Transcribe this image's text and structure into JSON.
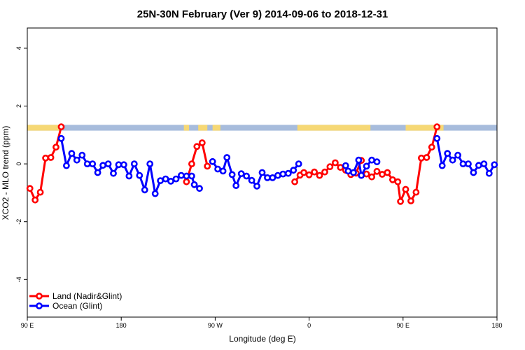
{
  "chart_data": {
    "type": "line",
    "title": "25N-30N February (Ver 9)   2014-09-06 to 2018-12-31",
    "xlabel": "Longitude (deg E)",
    "ylabel": "XCO2 - MLO trend (ppm)",
    "xlim": [
      90,
      450
    ],
    "ylim": [
      -5.3,
      4.7
    ],
    "x_ticks": [
      {
        "value": 90,
        "label": "90 E"
      },
      {
        "value": 162,
        "label": "180"
      },
      {
        "value": 234,
        "label": "90 W"
      },
      {
        "value": 306,
        "label": "0"
      },
      {
        "value": 378,
        "label": "90 E"
      },
      {
        "value": 450,
        "label": "180"
      }
    ],
    "y_ticks": [
      {
        "value": -4,
        "label": "-4"
      },
      {
        "value": -2,
        "label": "-2"
      },
      {
        "value": 0,
        "label": "0"
      },
      {
        "value": 2,
        "label": "2"
      },
      {
        "value": 4,
        "label": "4"
      }
    ],
    "grid": false,
    "legend_position": "bottom-left",
    "surface_strip": {
      "y_range": [
        1.15,
        1.35
      ],
      "ocean_color": "#A7BCDC",
      "land_color": "#F6D875",
      "land_segments": [
        [
          90,
          116
        ],
        [
          210,
          214
        ],
        [
          221,
          228
        ],
        [
          232,
          238
        ],
        [
          297,
          353
        ],
        [
          380,
          409
        ]
      ]
    },
    "series": [
      {
        "name": "Land (Nadir&Glint)",
        "color": "#FF0000",
        "segments": [
          [
            [
              92,
              -0.85
            ],
            [
              96,
              -1.25
            ],
            [
              100,
              -0.98
            ],
            [
              104,
              0.2
            ],
            [
              108,
              0.22
            ],
            [
              112,
              0.58
            ],
            [
              116,
              1.28
            ]
          ],
          [
            [
              212,
              -0.62
            ],
            [
              216,
              0.0
            ],
            [
              220,
              0.6
            ],
            [
              224,
              0.73
            ],
            [
              228,
              -0.08
            ]
          ],
          [
            [
              295,
              -0.62
            ],
            [
              299,
              -0.39
            ],
            [
              302,
              -0.3
            ],
            [
              306,
              -0.38
            ],
            [
              310,
              -0.28
            ],
            [
              314,
              -0.4
            ],
            [
              318,
              -0.28
            ],
            [
              322,
              -0.1
            ],
            [
              326,
              0.04
            ],
            [
              330,
              -0.12
            ],
            [
              334,
              -0.22
            ],
            [
              338,
              -0.37
            ],
            [
              342,
              -0.32
            ],
            [
              346,
              0.12
            ]
          ],
          [
            [
              350,
              -0.35
            ],
            [
              354,
              -0.45
            ],
            [
              358,
              -0.26
            ],
            [
              362,
              -0.36
            ],
            [
              366,
              -0.3
            ],
            [
              370,
              -0.55
            ],
            [
              374,
              -0.62
            ],
            [
              376,
              -1.3
            ],
            [
              380,
              -0.88
            ],
            [
              384,
              -1.28
            ],
            [
              388,
              -0.98
            ],
            [
              392,
              0.2
            ],
            [
              396,
              0.22
            ],
            [
              400,
              0.58
            ],
            [
              404,
              1.28
            ]
          ]
        ]
      },
      {
        "name": "Ocean (Glint)",
        "color": "#0000FF",
        "segments": [
          [
            [
              116,
              0.88
            ],
            [
              120,
              -0.06
            ],
            [
              124,
              0.36
            ],
            [
              128,
              0.13
            ],
            [
              132,
              0.3
            ],
            [
              136,
              0.0
            ],
            [
              140,
              0.0
            ],
            [
              144,
              -0.3
            ],
            [
              148,
              -0.05
            ],
            [
              152,
              0.0
            ],
            [
              156,
              -0.33
            ],
            [
              160,
              -0.03
            ],
            [
              164,
              -0.03
            ],
            [
              168,
              -0.42
            ],
            [
              172,
              0.0
            ],
            [
              176,
              -0.4
            ],
            [
              180,
              -0.9
            ],
            [
              184,
              0.0
            ],
            [
              188,
              -1.03
            ],
            [
              192,
              -0.58
            ],
            [
              196,
              -0.52
            ],
            [
              200,
              -0.6
            ],
            [
              204,
              -0.52
            ],
            [
              208,
              -0.4
            ],
            [
              212,
              -0.42
            ],
            [
              216,
              -0.42
            ],
            [
              218,
              -0.72
            ],
            [
              222,
              -0.85
            ]
          ],
          [
            [
              232,
              0.08
            ],
            [
              236,
              -0.18
            ],
            [
              240,
              -0.25
            ],
            [
              243,
              0.22
            ],
            [
              247,
              -0.37
            ],
            [
              250,
              -0.75
            ],
            [
              254,
              -0.34
            ],
            [
              258,
              -0.42
            ],
            [
              262,
              -0.57
            ],
            [
              266,
              -0.77
            ],
            [
              270,
              -0.3
            ],
            [
              274,
              -0.48
            ],
            [
              278,
              -0.48
            ],
            [
              282,
              -0.4
            ],
            [
              286,
              -0.35
            ],
            [
              290,
              -0.33
            ],
            [
              294,
              -0.22
            ],
            [
              298,
              0.0
            ]
          ],
          [
            [
              334,
              -0.06
            ],
            [
              336,
              -0.25
            ],
            [
              340,
              -0.3
            ],
            [
              344,
              0.13
            ],
            [
              346,
              -0.4
            ],
            [
              350,
              -0.08
            ],
            [
              354,
              0.13
            ],
            [
              358,
              0.07
            ]
          ],
          [
            [
              404,
              0.88
            ],
            [
              408,
              -0.06
            ],
            [
              412,
              0.36
            ],
            [
              416,
              0.13
            ],
            [
              420,
              0.3
            ],
            [
              424,
              0.0
            ],
            [
              428,
              0.0
            ],
            [
              432,
              -0.3
            ],
            [
              436,
              -0.05
            ],
            [
              440,
              0.0
            ],
            [
              444,
              -0.33
            ],
            [
              448,
              -0.03
            ]
          ]
        ]
      }
    ]
  }
}
